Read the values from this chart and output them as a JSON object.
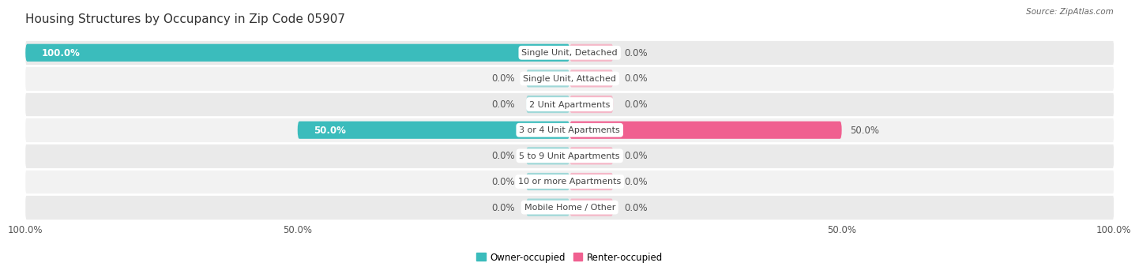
{
  "title": "Housing Structures by Occupancy in Zip Code 05907",
  "source": "Source: ZipAtlas.com",
  "categories": [
    "Single Unit, Detached",
    "Single Unit, Attached",
    "2 Unit Apartments",
    "3 or 4 Unit Apartments",
    "5 to 9 Unit Apartments",
    "10 or more Apartments",
    "Mobile Home / Other"
  ],
  "owner_values": [
    100.0,
    0.0,
    0.0,
    50.0,
    0.0,
    0.0,
    0.0
  ],
  "renter_values": [
    0.0,
    0.0,
    0.0,
    50.0,
    0.0,
    0.0,
    0.0
  ],
  "owner_color": "#3BBCBC",
  "renter_color": "#F06090",
  "owner_color_light": "#A0D8D8",
  "renter_color_light": "#F5B8C8",
  "row_bg_colors": [
    "#EAEAEA",
    "#F2F2F2",
    "#EAEAEA",
    "#F2F2F2",
    "#EAEAEA",
    "#F2F2F2",
    "#EAEAEA"
  ],
  "title_fontsize": 11,
  "label_fontsize": 8,
  "value_fontsize": 8.5,
  "axis_label_fontsize": 8.5,
  "figsize": [
    14.06,
    3.41
  ],
  "dpi": 100,
  "xlim": [
    -100,
    100
  ],
  "x_ticks": [
    -100,
    -50,
    50,
    100
  ],
  "x_tick_labels": [
    "100.0%",
    "50.0%",
    "50.0%",
    "100.0%"
  ]
}
